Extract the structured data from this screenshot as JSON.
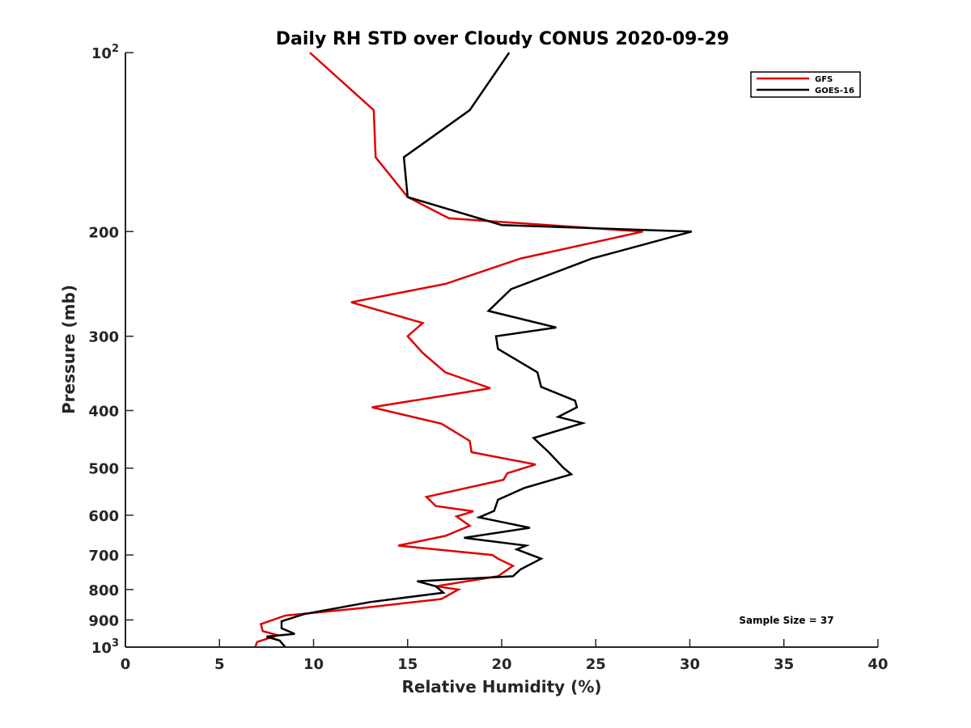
{
  "chart_data": {
    "type": "line",
    "title": "Daily RH STD over Cloudy CONUS 2020-09-29",
    "xlabel": "Relative Humidity (%)",
    "ylabel": "Pressure (mb)",
    "xlim": [
      0,
      40
    ],
    "ylim": [
      100,
      1000
    ],
    "y_scale": "log",
    "y_reversed": true,
    "grid": false,
    "legend_position": "top-right",
    "x_ticks": [
      0,
      5,
      10,
      15,
      20,
      25,
      30,
      35,
      40
    ],
    "x_tick_labels": [
      "0",
      "5",
      "10",
      "15",
      "20",
      "25",
      "30",
      "35",
      "40"
    ],
    "y_ticks": [
      {
        "value": 100,
        "base": "10",
        "exp": "2"
      },
      {
        "value": 200,
        "label": "200"
      },
      {
        "value": 300,
        "label": "300"
      },
      {
        "value": 400,
        "label": "400"
      },
      {
        "value": 500,
        "label": "500"
      },
      {
        "value": 600,
        "label": "600"
      },
      {
        "value": 700,
        "label": "700"
      },
      {
        "value": 800,
        "label": "800"
      },
      {
        "value": 900,
        "label": "900"
      },
      {
        "value": 1000,
        "base": "10",
        "exp": "3"
      }
    ],
    "series": [
      {
        "name": "GFS",
        "color": "#e00000",
        "points": [
          [
            9.8,
            100
          ],
          [
            13.2,
            125
          ],
          [
            13.3,
            150
          ],
          [
            15.0,
            175
          ],
          [
            17.2,
            190
          ],
          [
            27.5,
            200
          ],
          [
            21.0,
            222
          ],
          [
            17.0,
            245
          ],
          [
            12.0,
            263
          ],
          [
            15.8,
            285
          ],
          [
            15.0,
            300
          ],
          [
            15.8,
            320
          ],
          [
            17.0,
            345
          ],
          [
            19.4,
            367
          ],
          [
            13.1,
            395
          ],
          [
            16.8,
            421
          ],
          [
            18.3,
            450
          ],
          [
            18.4,
            470
          ],
          [
            21.8,
            493
          ],
          [
            20.3,
            510
          ],
          [
            20.1,
            523
          ],
          [
            16.0,
            559
          ],
          [
            16.5,
            579
          ],
          [
            18.5,
            591
          ],
          [
            17.6,
            603
          ],
          [
            18.3,
            625
          ],
          [
            17.0,
            650
          ],
          [
            14.5,
            675
          ],
          [
            19.5,
            700
          ],
          [
            19.8,
            710
          ],
          [
            20.6,
            730
          ],
          [
            19.8,
            760
          ],
          [
            16.5,
            790
          ],
          [
            17.7,
            800
          ],
          [
            16.8,
            830
          ],
          [
            12.5,
            860
          ],
          [
            8.5,
            885
          ],
          [
            7.2,
            915
          ],
          [
            7.3,
            940
          ],
          [
            8.1,
            955
          ],
          [
            7.0,
            980
          ],
          [
            6.9,
            1000
          ]
        ]
      },
      {
        "name": "GOES-16",
        "color": "#000000",
        "points": [
          [
            20.4,
            100
          ],
          [
            18.3,
            125
          ],
          [
            14.8,
            150
          ],
          [
            15.0,
            175
          ],
          [
            20.0,
            195
          ],
          [
            30.1,
            200
          ],
          [
            24.8,
            222
          ],
          [
            20.5,
            250
          ],
          [
            19.3,
            272
          ],
          [
            22.9,
            290
          ],
          [
            19.7,
            300
          ],
          [
            19.8,
            315
          ],
          [
            21.9,
            345
          ],
          [
            22.1,
            365
          ],
          [
            23.9,
            385
          ],
          [
            24.0,
            395
          ],
          [
            23.0,
            410
          ],
          [
            24.3,
            420
          ],
          [
            21.7,
            445
          ],
          [
            22.5,
            470
          ],
          [
            23.3,
            500
          ],
          [
            23.7,
            512
          ],
          [
            21.2,
            540
          ],
          [
            19.8,
            565
          ],
          [
            19.6,
            590
          ],
          [
            18.8,
            605
          ],
          [
            21.5,
            630
          ],
          [
            18.0,
            655
          ],
          [
            21.3,
            675
          ],
          [
            20.8,
            685
          ],
          [
            22.1,
            710
          ],
          [
            21.0,
            740
          ],
          [
            20.6,
            760
          ],
          [
            15.5,
            775
          ],
          [
            16.5,
            790
          ],
          [
            16.9,
            810
          ],
          [
            13.0,
            840
          ],
          [
            9.5,
            880
          ],
          [
            8.3,
            905
          ],
          [
            8.3,
            930
          ],
          [
            9.0,
            950
          ],
          [
            7.5,
            960
          ],
          [
            8.2,
            975
          ],
          [
            8.5,
            1000
          ]
        ]
      }
    ],
    "annotation": "Sample Size = 37"
  }
}
